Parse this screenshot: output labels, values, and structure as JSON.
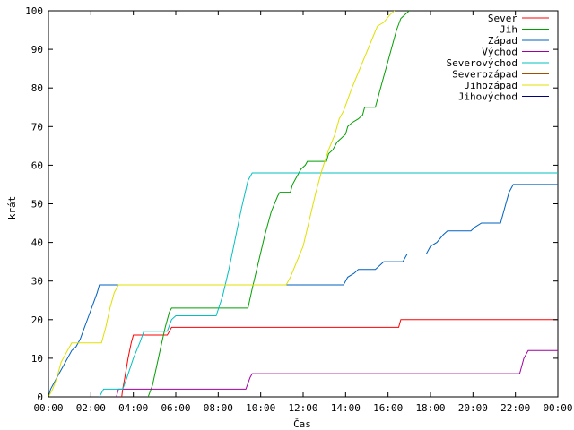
{
  "chart_data": {
    "type": "line",
    "title": "",
    "xlabel": "Čas",
    "ylabel": "krát",
    "xlim": [
      0,
      24
    ],
    "ylim": [
      0,
      100
    ],
    "y_ticks": [
      0,
      10,
      20,
      30,
      40,
      50,
      60,
      70,
      80,
      90,
      100
    ],
    "x_ticks": [
      0,
      2,
      4,
      6,
      8,
      10,
      12,
      14,
      16,
      18,
      20,
      22,
      24
    ],
    "x_tick_labels": [
      "00:00",
      "02:00",
      "04:00",
      "06:00",
      "08:00",
      "10:00",
      "12:00",
      "14:00",
      "16:00",
      "18:00",
      "20:00",
      "22:00",
      "00:00"
    ],
    "grid": false,
    "legend_position": "top-right",
    "series": [
      {
        "name": "Sever",
        "color": "#ff0000",
        "points": [
          [
            3.45,
            0
          ],
          [
            3.5,
            2
          ],
          [
            3.6,
            5
          ],
          [
            3.75,
            10
          ],
          [
            3.9,
            14
          ],
          [
            4.0,
            16
          ],
          [
            5.6,
            16
          ],
          [
            5.7,
            17
          ],
          [
            5.8,
            18
          ],
          [
            16.5,
            18
          ],
          [
            16.6,
            20
          ],
          [
            24,
            20
          ]
        ]
      },
      {
        "name": "Jih",
        "color": "#00a000",
        "points": [
          [
            4.7,
            0
          ],
          [
            4.9,
            3
          ],
          [
            5.1,
            8
          ],
          [
            5.3,
            13
          ],
          [
            5.5,
            18
          ],
          [
            5.7,
            22
          ],
          [
            5.8,
            23
          ],
          [
            9.4,
            23
          ],
          [
            9.6,
            28
          ],
          [
            9.9,
            35
          ],
          [
            10.2,
            42
          ],
          [
            10.5,
            48
          ],
          [
            10.8,
            52
          ],
          [
            10.9,
            53
          ],
          [
            11.4,
            53
          ],
          [
            11.5,
            55
          ],
          [
            11.7,
            57
          ],
          [
            11.9,
            59
          ],
          [
            12.1,
            60
          ],
          [
            12.2,
            61
          ],
          [
            13.1,
            61
          ],
          [
            13.2,
            63
          ],
          [
            13.4,
            64
          ],
          [
            13.6,
            66
          ],
          [
            13.8,
            67
          ],
          [
            14.0,
            68
          ],
          [
            14.1,
            70
          ],
          [
            14.3,
            71
          ],
          [
            14.6,
            72
          ],
          [
            14.8,
            73
          ],
          [
            14.9,
            75
          ],
          [
            15.4,
            75
          ],
          [
            15.6,
            79
          ],
          [
            15.8,
            83
          ],
          [
            16.0,
            87
          ],
          [
            16.2,
            91
          ],
          [
            16.4,
            95
          ],
          [
            16.6,
            98
          ],
          [
            16.8,
            99
          ],
          [
            17.0,
            100
          ]
        ]
      },
      {
        "name": "Západ",
        "color": "#0060c0",
        "points": [
          [
            0,
            0
          ],
          [
            0.1,
            2
          ],
          [
            0.3,
            4
          ],
          [
            0.5,
            6
          ],
          [
            0.7,
            8
          ],
          [
            0.9,
            10
          ],
          [
            1.1,
            12
          ],
          [
            1.3,
            13
          ],
          [
            1.5,
            15
          ],
          [
            1.7,
            18
          ],
          [
            1.9,
            21
          ],
          [
            2.1,
            24
          ],
          [
            2.3,
            27
          ],
          [
            2.4,
            29
          ],
          [
            3.2,
            29
          ],
          [
            11.2,
            29
          ],
          [
            13.9,
            29
          ],
          [
            14.1,
            31
          ],
          [
            14.4,
            32
          ],
          [
            14.6,
            33
          ],
          [
            15.4,
            33
          ],
          [
            15.6,
            34
          ],
          [
            15.8,
            35
          ],
          [
            16.7,
            35
          ],
          [
            16.9,
            37
          ],
          [
            17.8,
            37
          ],
          [
            18.0,
            39
          ],
          [
            18.3,
            40
          ],
          [
            18.6,
            42
          ],
          [
            18.8,
            43
          ],
          [
            19.9,
            43
          ],
          [
            20.1,
            44
          ],
          [
            20.4,
            45
          ],
          [
            21.3,
            45
          ],
          [
            21.5,
            49
          ],
          [
            21.7,
            53
          ],
          [
            21.9,
            55
          ],
          [
            24,
            55
          ]
        ]
      },
      {
        "name": "Východ",
        "color": "#a000a0",
        "points": [
          [
            3.2,
            0
          ],
          [
            3.3,
            2
          ],
          [
            9.3,
            2
          ],
          [
            9.5,
            5
          ],
          [
            9.6,
            6
          ],
          [
            22.2,
            6
          ],
          [
            22.4,
            10
          ],
          [
            22.6,
            12
          ],
          [
            24,
            12
          ]
        ]
      },
      {
        "name": "Severovýchod",
        "color": "#00c0c0",
        "points": [
          [
            2.4,
            0
          ],
          [
            2.6,
            2
          ],
          [
            3.5,
            2
          ],
          [
            3.7,
            5
          ],
          [
            4.0,
            10
          ],
          [
            4.3,
            14
          ],
          [
            4.5,
            17
          ],
          [
            5.6,
            17
          ],
          [
            5.8,
            20
          ],
          [
            6.0,
            21
          ],
          [
            7.9,
            21
          ],
          [
            8.2,
            26
          ],
          [
            8.5,
            33
          ],
          [
            8.8,
            41
          ],
          [
            9.1,
            49
          ],
          [
            9.4,
            56
          ],
          [
            9.6,
            58
          ],
          [
            24,
            58
          ]
        ]
      },
      {
        "name": "Severozápad",
        "color": "#a05000",
        "points": []
      },
      {
        "name": "Jihozápad",
        "color": "#e0e000",
        "points": [
          [
            0,
            0
          ],
          [
            0.2,
            2
          ],
          [
            0.4,
            5
          ],
          [
            0.6,
            9
          ],
          [
            0.9,
            12
          ],
          [
            1.1,
            14
          ],
          [
            2.5,
            14
          ],
          [
            2.7,
            18
          ],
          [
            2.9,
            23
          ],
          [
            3.1,
            27
          ],
          [
            3.3,
            29
          ],
          [
            11.2,
            29
          ],
          [
            11.4,
            31
          ],
          [
            11.7,
            35
          ],
          [
            12.0,
            39
          ],
          [
            12.3,
            46
          ],
          [
            12.6,
            53
          ],
          [
            12.9,
            59
          ],
          [
            13.2,
            64
          ],
          [
            13.5,
            68
          ],
          [
            13.7,
            72
          ],
          [
            13.9,
            74
          ],
          [
            14.1,
            77
          ],
          [
            14.3,
            80
          ],
          [
            14.6,
            84
          ],
          [
            14.9,
            88
          ],
          [
            15.2,
            92
          ],
          [
            15.5,
            96
          ],
          [
            15.8,
            97
          ],
          [
            16.1,
            99
          ],
          [
            16.3,
            100
          ]
        ]
      },
      {
        "name": "Jihovýchod",
        "color": "#000080",
        "points": []
      }
    ]
  }
}
